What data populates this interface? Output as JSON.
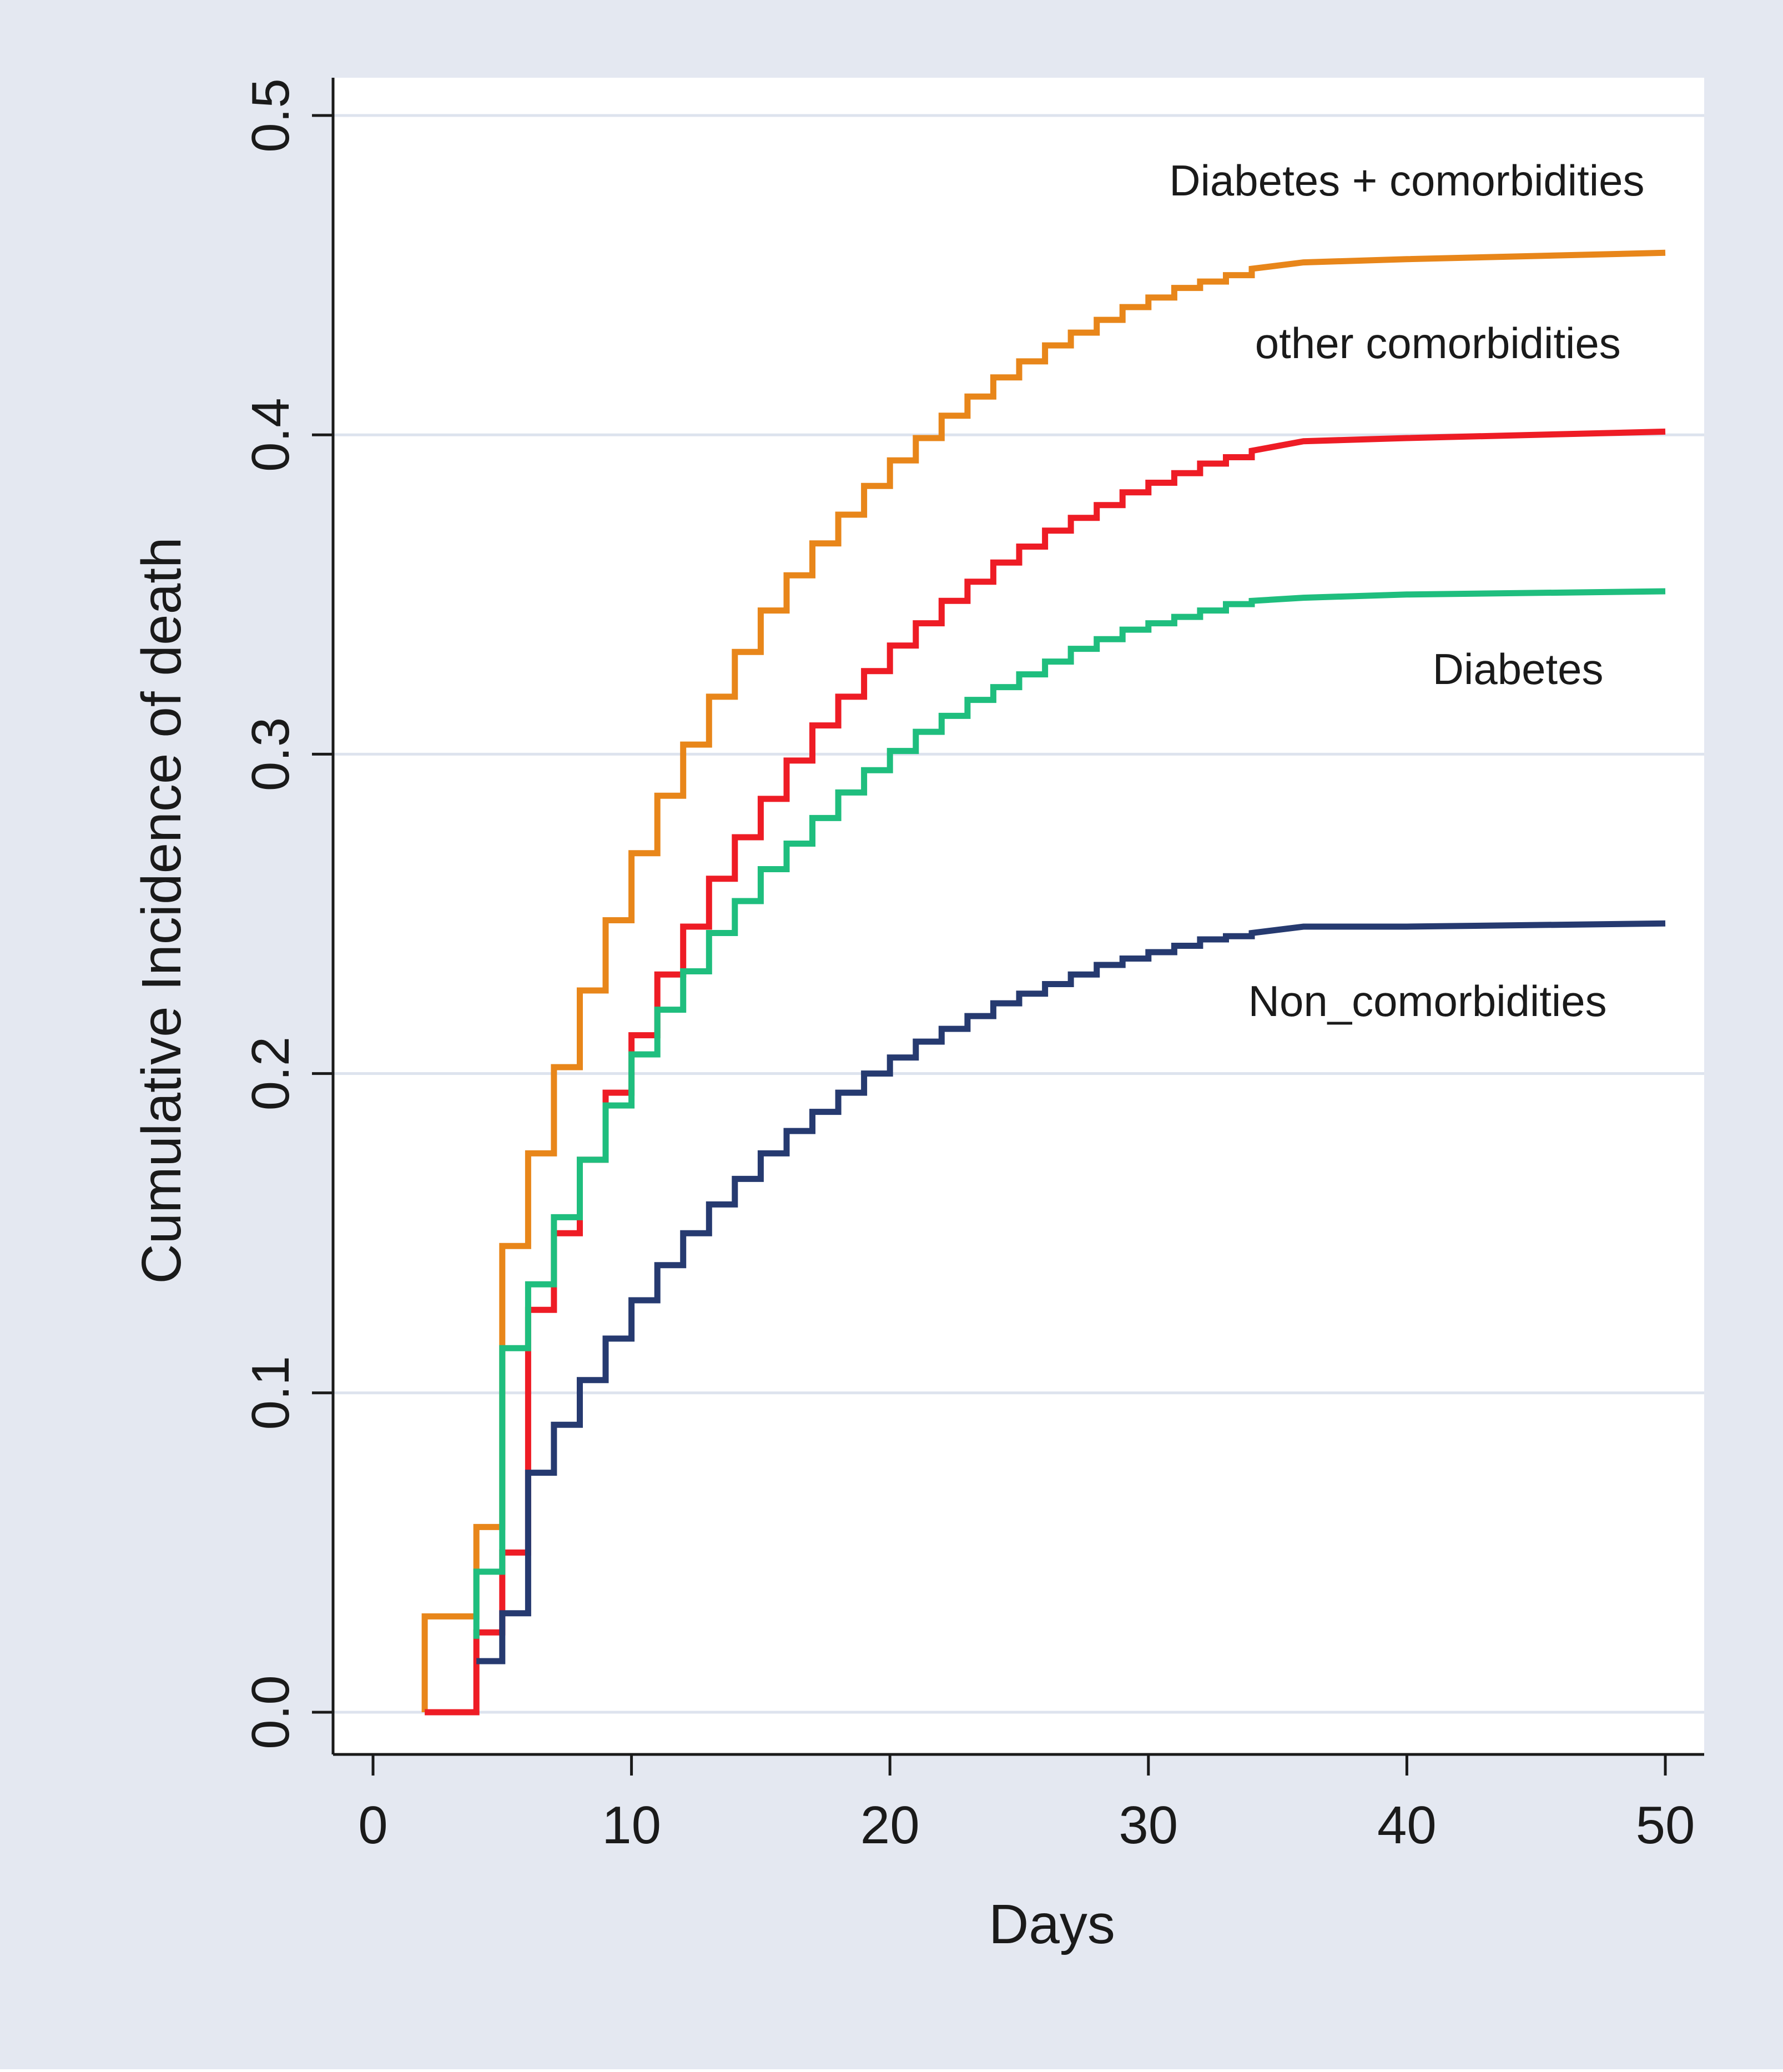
{
  "colors": {
    "outer_background": "#e4e8f1",
    "plot_background": "#ffffff",
    "gridline": "#dde3ee",
    "axis": "#1a1a1a"
  },
  "chart_data": {
    "type": "line",
    "step": true,
    "title": "",
    "xlabel": "Days",
    "ylabel": "Cumulative Incidence of death",
    "xlim": [
      0,
      50
    ],
    "ylim": [
      0,
      0.5
    ],
    "x_ticks": [
      0,
      10,
      20,
      30,
      40,
      50
    ],
    "x_tick_labels": [
      "0",
      "10",
      "20",
      "30",
      "40",
      "50"
    ],
    "y_ticks": [
      0,
      0.1,
      0.2,
      0.3,
      0.4,
      0.5
    ],
    "y_tick_labels": [
      "0.0",
      "0.1",
      "0.2",
      "0.3",
      "0.4",
      "0.5"
    ],
    "grid": true,
    "legend": "inline labels at right",
    "series": [
      {
        "name": "Diabetes + comorbidities",
        "color": "#e8861a",
        "label_x": 40,
        "label_y": 0.475,
        "points": [
          [
            2,
            0
          ],
          [
            2,
            0.03
          ],
          [
            4,
            0.03
          ],
          [
            4,
            0.058
          ],
          [
            5,
            0.058
          ],
          [
            5,
            0.146
          ],
          [
            6,
            0.146
          ],
          [
            6,
            0.175
          ],
          [
            7,
            0.175
          ],
          [
            7,
            0.202
          ],
          [
            8,
            0.202
          ],
          [
            8,
            0.226
          ],
          [
            9,
            0.226
          ],
          [
            9,
            0.248
          ],
          [
            10,
            0.248
          ],
          [
            10,
            0.269
          ],
          [
            11,
            0.269
          ],
          [
            11,
            0.287
          ],
          [
            12,
            0.287
          ],
          [
            12,
            0.303
          ],
          [
            13,
            0.303
          ],
          [
            13,
            0.318
          ],
          [
            14,
            0.318
          ],
          [
            14,
            0.332
          ],
          [
            15,
            0.332
          ],
          [
            15,
            0.345
          ],
          [
            16,
            0.345
          ],
          [
            16,
            0.356
          ],
          [
            17,
            0.356
          ],
          [
            17,
            0.366
          ],
          [
            18,
            0.366
          ],
          [
            18,
            0.375
          ],
          [
            19,
            0.375
          ],
          [
            19,
            0.384
          ],
          [
            20,
            0.384
          ],
          [
            20,
            0.392
          ],
          [
            21,
            0.392
          ],
          [
            21,
            0.399
          ],
          [
            22,
            0.399
          ],
          [
            22,
            0.406
          ],
          [
            23,
            0.406
          ],
          [
            23,
            0.412
          ],
          [
            24,
            0.412
          ],
          [
            24,
            0.418
          ],
          [
            25,
            0.418
          ],
          [
            25,
            0.423
          ],
          [
            26,
            0.423
          ],
          [
            26,
            0.428
          ],
          [
            27,
            0.428
          ],
          [
            27,
            0.432
          ],
          [
            28,
            0.432
          ],
          [
            28,
            0.436
          ],
          [
            29,
            0.436
          ],
          [
            29,
            0.44
          ],
          [
            30,
            0.44
          ],
          [
            30,
            0.443
          ],
          [
            31,
            0.443
          ],
          [
            31,
            0.446
          ],
          [
            32,
            0.446
          ],
          [
            32,
            0.448
          ],
          [
            33,
            0.448
          ],
          [
            33,
            0.45
          ],
          [
            34,
            0.45
          ],
          [
            34,
            0.452
          ],
          [
            36,
            0.454
          ],
          [
            40,
            0.455
          ],
          [
            50,
            0.457
          ]
        ]
      },
      {
        "name": "other comorbidities",
        "color": "#ee1c25",
        "label_x": 41.2,
        "label_y": 0.424,
        "points": [
          [
            2,
            0
          ],
          [
            4,
            0
          ],
          [
            4,
            0.025
          ],
          [
            5,
            0.025
          ],
          [
            5,
            0.05
          ],
          [
            6,
            0.05
          ],
          [
            6,
            0.126
          ],
          [
            7,
            0.126
          ],
          [
            7,
            0.15
          ],
          [
            8,
            0.15
          ],
          [
            8,
            0.173
          ],
          [
            9,
            0.173
          ],
          [
            9,
            0.194
          ],
          [
            10,
            0.194
          ],
          [
            10,
            0.212
          ],
          [
            11,
            0.212
          ],
          [
            11,
            0.231
          ],
          [
            12,
            0.231
          ],
          [
            12,
            0.246
          ],
          [
            13,
            0.246
          ],
          [
            13,
            0.261
          ],
          [
            14,
            0.261
          ],
          [
            14,
            0.274
          ],
          [
            15,
            0.274
          ],
          [
            15,
            0.286
          ],
          [
            16,
            0.286
          ],
          [
            16,
            0.298
          ],
          [
            17,
            0.298
          ],
          [
            17,
            0.309
          ],
          [
            18,
            0.309
          ],
          [
            18,
            0.318
          ],
          [
            19,
            0.318
          ],
          [
            19,
            0.326
          ],
          [
            20,
            0.326
          ],
          [
            20,
            0.334
          ],
          [
            21,
            0.334
          ],
          [
            21,
            0.341
          ],
          [
            22,
            0.341
          ],
          [
            22,
            0.348
          ],
          [
            23,
            0.348
          ],
          [
            23,
            0.354
          ],
          [
            24,
            0.354
          ],
          [
            24,
            0.36
          ],
          [
            25,
            0.36
          ],
          [
            25,
            0.365
          ],
          [
            26,
            0.365
          ],
          [
            26,
            0.37
          ],
          [
            27,
            0.37
          ],
          [
            27,
            0.374
          ],
          [
            28,
            0.374
          ],
          [
            28,
            0.378
          ],
          [
            29,
            0.378
          ],
          [
            29,
            0.382
          ],
          [
            30,
            0.382
          ],
          [
            30,
            0.385
          ],
          [
            31,
            0.385
          ],
          [
            31,
            0.388
          ],
          [
            32,
            0.388
          ],
          [
            32,
            0.391
          ],
          [
            33,
            0.391
          ],
          [
            33,
            0.393
          ],
          [
            34,
            0.393
          ],
          [
            34,
            0.395
          ],
          [
            36,
            0.398
          ],
          [
            40,
            0.399
          ],
          [
            50,
            0.401
          ]
        ]
      },
      {
        "name": "Diabetes",
        "color": "#1fbe7e",
        "label_x": 44.3,
        "label_y": 0.322,
        "points": [
          [
            4,
            0.023
          ],
          [
            4,
            0.044
          ],
          [
            5,
            0.044
          ],
          [
            5,
            0.114
          ],
          [
            6,
            0.114
          ],
          [
            6,
            0.134
          ],
          [
            7,
            0.134
          ],
          [
            7,
            0.155
          ],
          [
            8,
            0.155
          ],
          [
            8,
            0.173
          ],
          [
            9,
            0.173
          ],
          [
            9,
            0.19
          ],
          [
            10,
            0.19
          ],
          [
            10,
            0.206
          ],
          [
            11,
            0.206
          ],
          [
            11,
            0.22
          ],
          [
            12,
            0.22
          ],
          [
            12,
            0.232
          ],
          [
            13,
            0.232
          ],
          [
            13,
            0.244
          ],
          [
            14,
            0.244
          ],
          [
            14,
            0.254
          ],
          [
            15,
            0.254
          ],
          [
            15,
            0.264
          ],
          [
            16,
            0.264
          ],
          [
            16,
            0.272
          ],
          [
            17,
            0.272
          ],
          [
            17,
            0.28
          ],
          [
            18,
            0.28
          ],
          [
            18,
            0.288
          ],
          [
            19,
            0.288
          ],
          [
            19,
            0.295
          ],
          [
            20,
            0.295
          ],
          [
            20,
            0.301
          ],
          [
            21,
            0.301
          ],
          [
            21,
            0.307
          ],
          [
            22,
            0.307
          ],
          [
            22,
            0.312
          ],
          [
            23,
            0.312
          ],
          [
            23,
            0.317
          ],
          [
            24,
            0.317
          ],
          [
            24,
            0.321
          ],
          [
            25,
            0.321
          ],
          [
            25,
            0.325
          ],
          [
            26,
            0.325
          ],
          [
            26,
            0.329
          ],
          [
            27,
            0.329
          ],
          [
            27,
            0.333
          ],
          [
            28,
            0.333
          ],
          [
            28,
            0.336
          ],
          [
            29,
            0.336
          ],
          [
            29,
            0.339
          ],
          [
            30,
            0.339
          ],
          [
            30,
            0.341
          ],
          [
            31,
            0.341
          ],
          [
            31,
            0.343
          ],
          [
            32,
            0.343
          ],
          [
            32,
            0.345
          ],
          [
            33,
            0.345
          ],
          [
            33,
            0.347
          ],
          [
            34,
            0.347
          ],
          [
            34,
            0.348
          ],
          [
            36,
            0.349
          ],
          [
            40,
            0.35
          ],
          [
            50,
            0.351
          ]
        ]
      },
      {
        "name": "Non_comorbidities",
        "color": "#263a70",
        "label_x": 40.8,
        "label_y": 0.218,
        "points": [
          [
            4,
            0.016
          ],
          [
            5,
            0.016
          ],
          [
            5,
            0.031
          ],
          [
            6,
            0.031
          ],
          [
            6,
            0.075
          ],
          [
            7,
            0.075
          ],
          [
            7,
            0.09
          ],
          [
            8,
            0.09
          ],
          [
            8,
            0.104
          ],
          [
            9,
            0.104
          ],
          [
            9,
            0.117
          ],
          [
            10,
            0.117
          ],
          [
            10,
            0.129
          ],
          [
            11,
            0.129
          ],
          [
            11,
            0.14
          ],
          [
            12,
            0.14
          ],
          [
            12,
            0.15
          ],
          [
            13,
            0.15
          ],
          [
            13,
            0.159
          ],
          [
            14,
            0.159
          ],
          [
            14,
            0.167
          ],
          [
            15,
            0.167
          ],
          [
            15,
            0.175
          ],
          [
            16,
            0.175
          ],
          [
            16,
            0.182
          ],
          [
            17,
            0.182
          ],
          [
            17,
            0.188
          ],
          [
            18,
            0.188
          ],
          [
            18,
            0.194
          ],
          [
            19,
            0.194
          ],
          [
            19,
            0.2
          ],
          [
            20,
            0.2
          ],
          [
            20,
            0.205
          ],
          [
            21,
            0.205
          ],
          [
            21,
            0.21
          ],
          [
            22,
            0.21
          ],
          [
            22,
            0.214
          ],
          [
            23,
            0.214
          ],
          [
            23,
            0.218
          ],
          [
            24,
            0.218
          ],
          [
            24,
            0.222
          ],
          [
            25,
            0.222
          ],
          [
            25,
            0.225
          ],
          [
            26,
            0.225
          ],
          [
            26,
            0.228
          ],
          [
            27,
            0.228
          ],
          [
            27,
            0.231
          ],
          [
            28,
            0.231
          ],
          [
            28,
            0.234
          ],
          [
            29,
            0.234
          ],
          [
            29,
            0.236
          ],
          [
            30,
            0.236
          ],
          [
            30,
            0.238
          ],
          [
            31,
            0.238
          ],
          [
            31,
            0.24
          ],
          [
            32,
            0.24
          ],
          [
            32,
            0.242
          ],
          [
            33,
            0.242
          ],
          [
            33,
            0.243
          ],
          [
            34,
            0.243
          ],
          [
            34,
            0.244
          ],
          [
            36,
            0.246
          ],
          [
            40,
            0.246
          ],
          [
            50,
            0.247
          ]
        ]
      }
    ]
  }
}
